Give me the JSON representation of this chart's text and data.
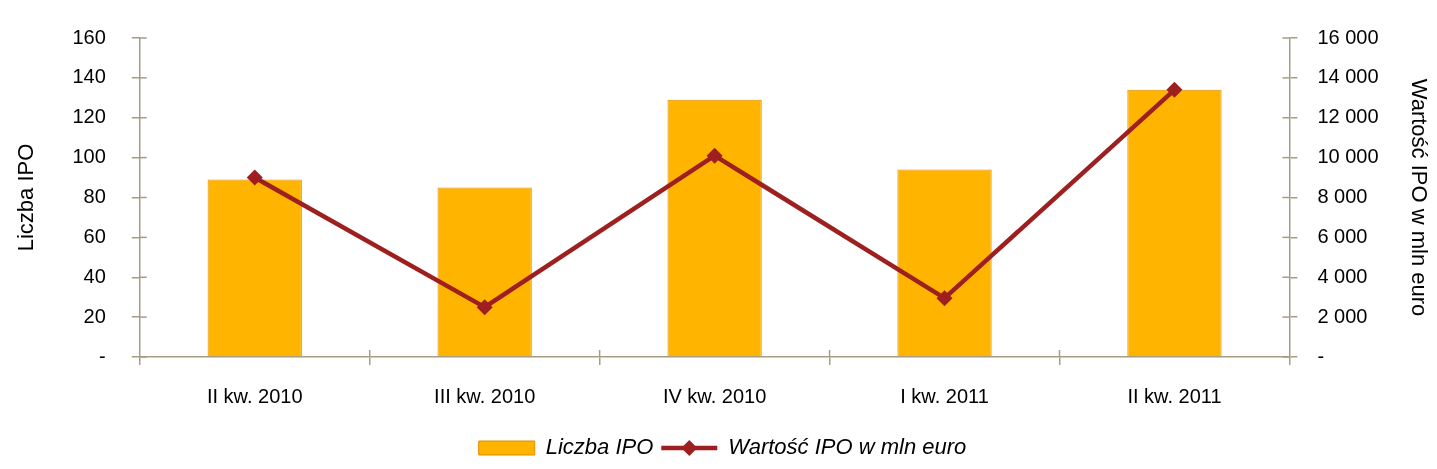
{
  "chart_data": {
    "type": "bar",
    "categories": [
      "II kw. 2010",
      "III kw. 2010",
      "IV kw. 2010",
      "I kw. 2011",
      "II kw. 2011"
    ],
    "ylabel": "Liczba IPO",
    "y2label": "Wartość IPO w mln euro",
    "series": [
      {
        "name": "Liczba IPO",
        "color": "#ffb400",
        "values": [
          89,
          85,
          129,
          94,
          134
        ]
      },
      {
        "name": "Wartość IPO w mln euro",
        "type": "line",
        "axis": "y2",
        "color": "#9e1f20",
        "values": [
          9000,
          2500,
          10100,
          2950,
          13400
        ]
      }
    ],
    "ylim": [
      0,
      160
    ],
    "yticks": [
      {
        "value": 0,
        "label": "-"
      },
      20,
      40,
      60,
      80,
      100,
      120,
      140,
      160
    ],
    "y2lim": [
      0,
      16000
    ],
    "y2ticks": [
      {
        "value": 0,
        "label": "-"
      },
      {
        "value": 2000,
        "label": "2 000"
      },
      {
        "value": 4000,
        "label": "4 000"
      },
      {
        "value": 6000,
        "label": "6 000"
      },
      {
        "value": 8000,
        "label": "8 000"
      },
      {
        "value": 10000,
        "label": "10 000"
      },
      {
        "value": 12000,
        "label": "12 000"
      },
      {
        "value": 14000,
        "label": "14 000"
      },
      {
        "value": 16000,
        "label": "16 000"
      }
    ],
    "legend": "bottom",
    "marker": "diamond",
    "line_style": "solid"
  }
}
